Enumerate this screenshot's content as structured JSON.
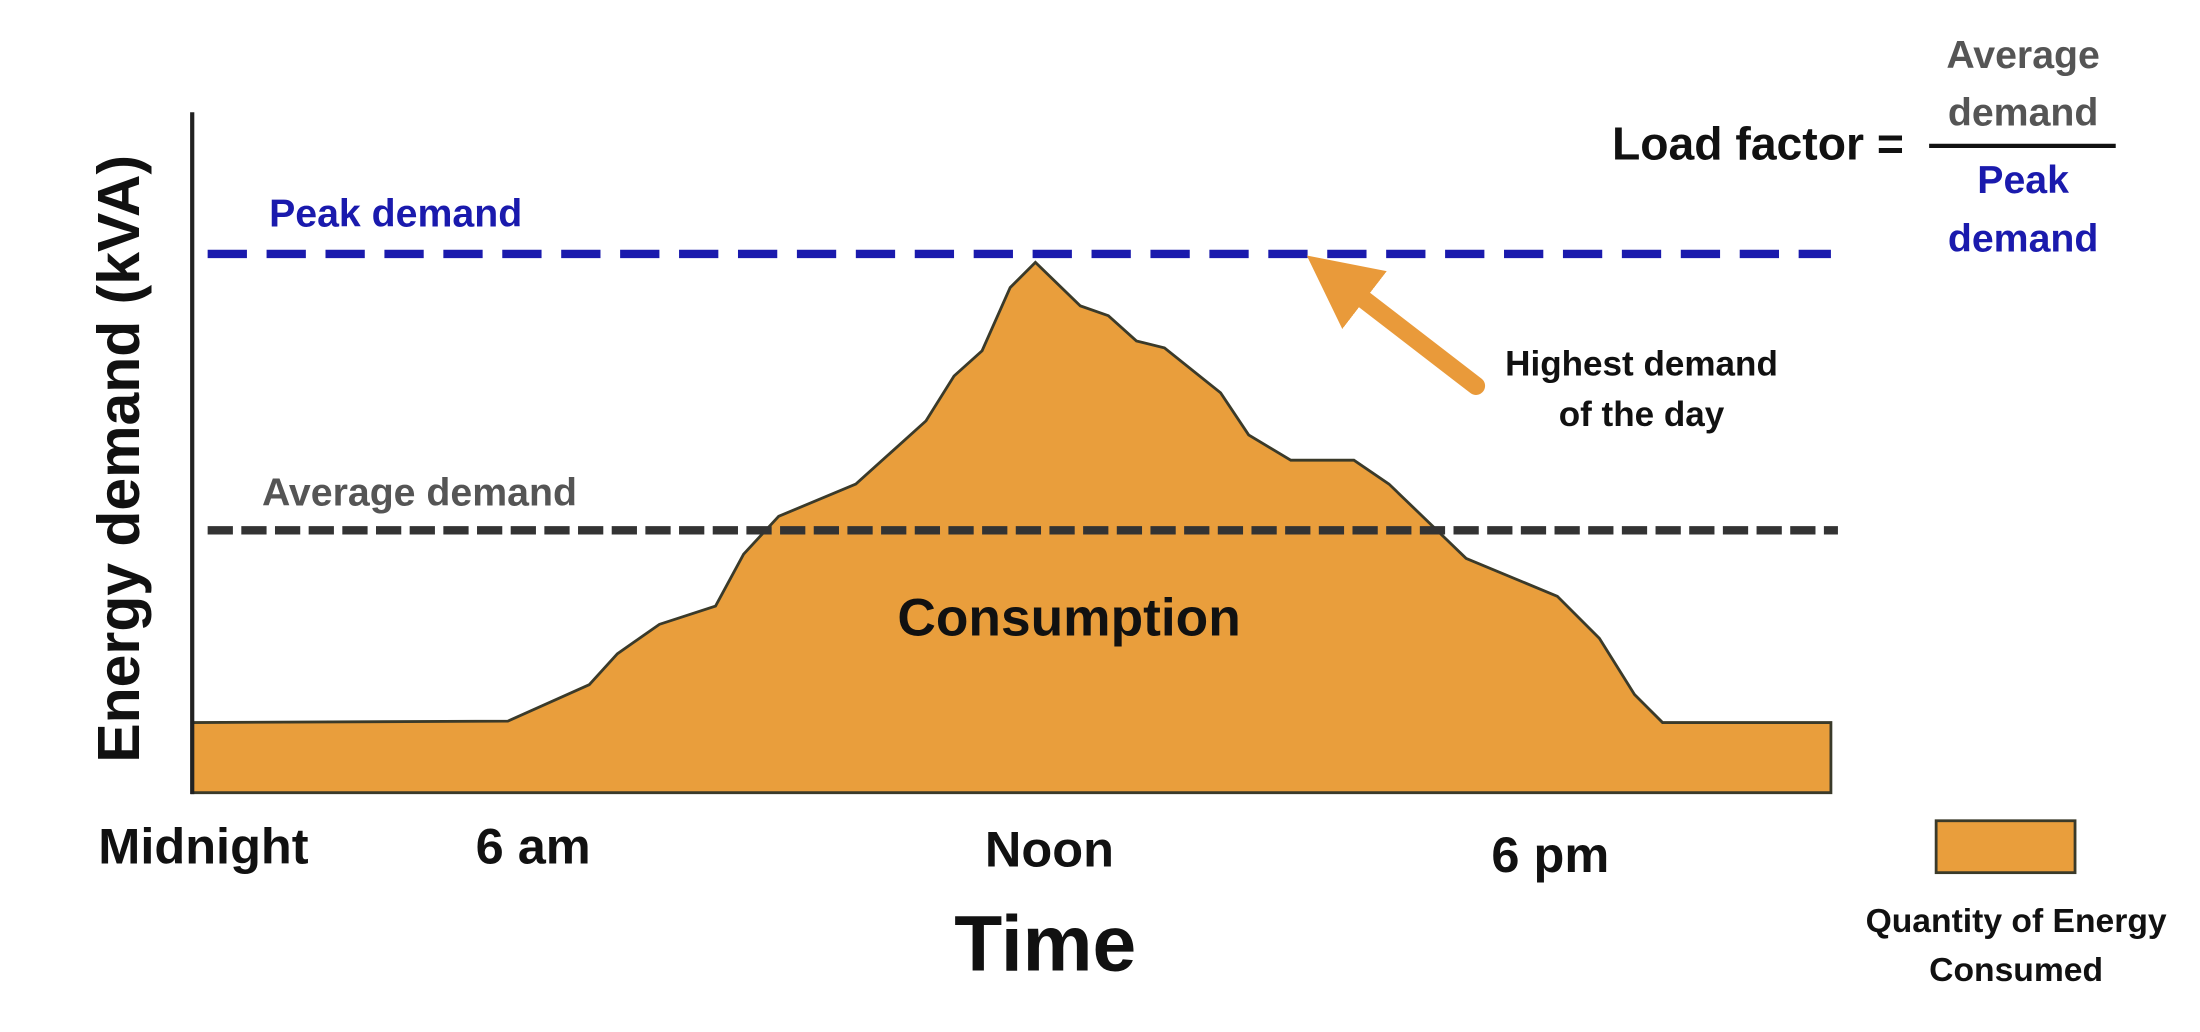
{
  "y_axis_label": "Energy demand (kVA)",
  "x_axis_label": "Time",
  "x_labels": [
    "Midnight",
    "6 am",
    "Noon",
    "6 pm"
  ],
  "annotations": {
    "peak": "Peak demand",
    "average": "Average demand",
    "area": "Consumption",
    "highest": [
      "Highest demand",
      "of the day"
    ]
  },
  "formula": {
    "lhs": "Load factor =",
    "numerator": [
      "Average",
      "demand"
    ],
    "denominator": [
      "Peak",
      "demand"
    ]
  },
  "legend": {
    "label": [
      "Quantity of Energy",
      "Consumed"
    ]
  }
}
